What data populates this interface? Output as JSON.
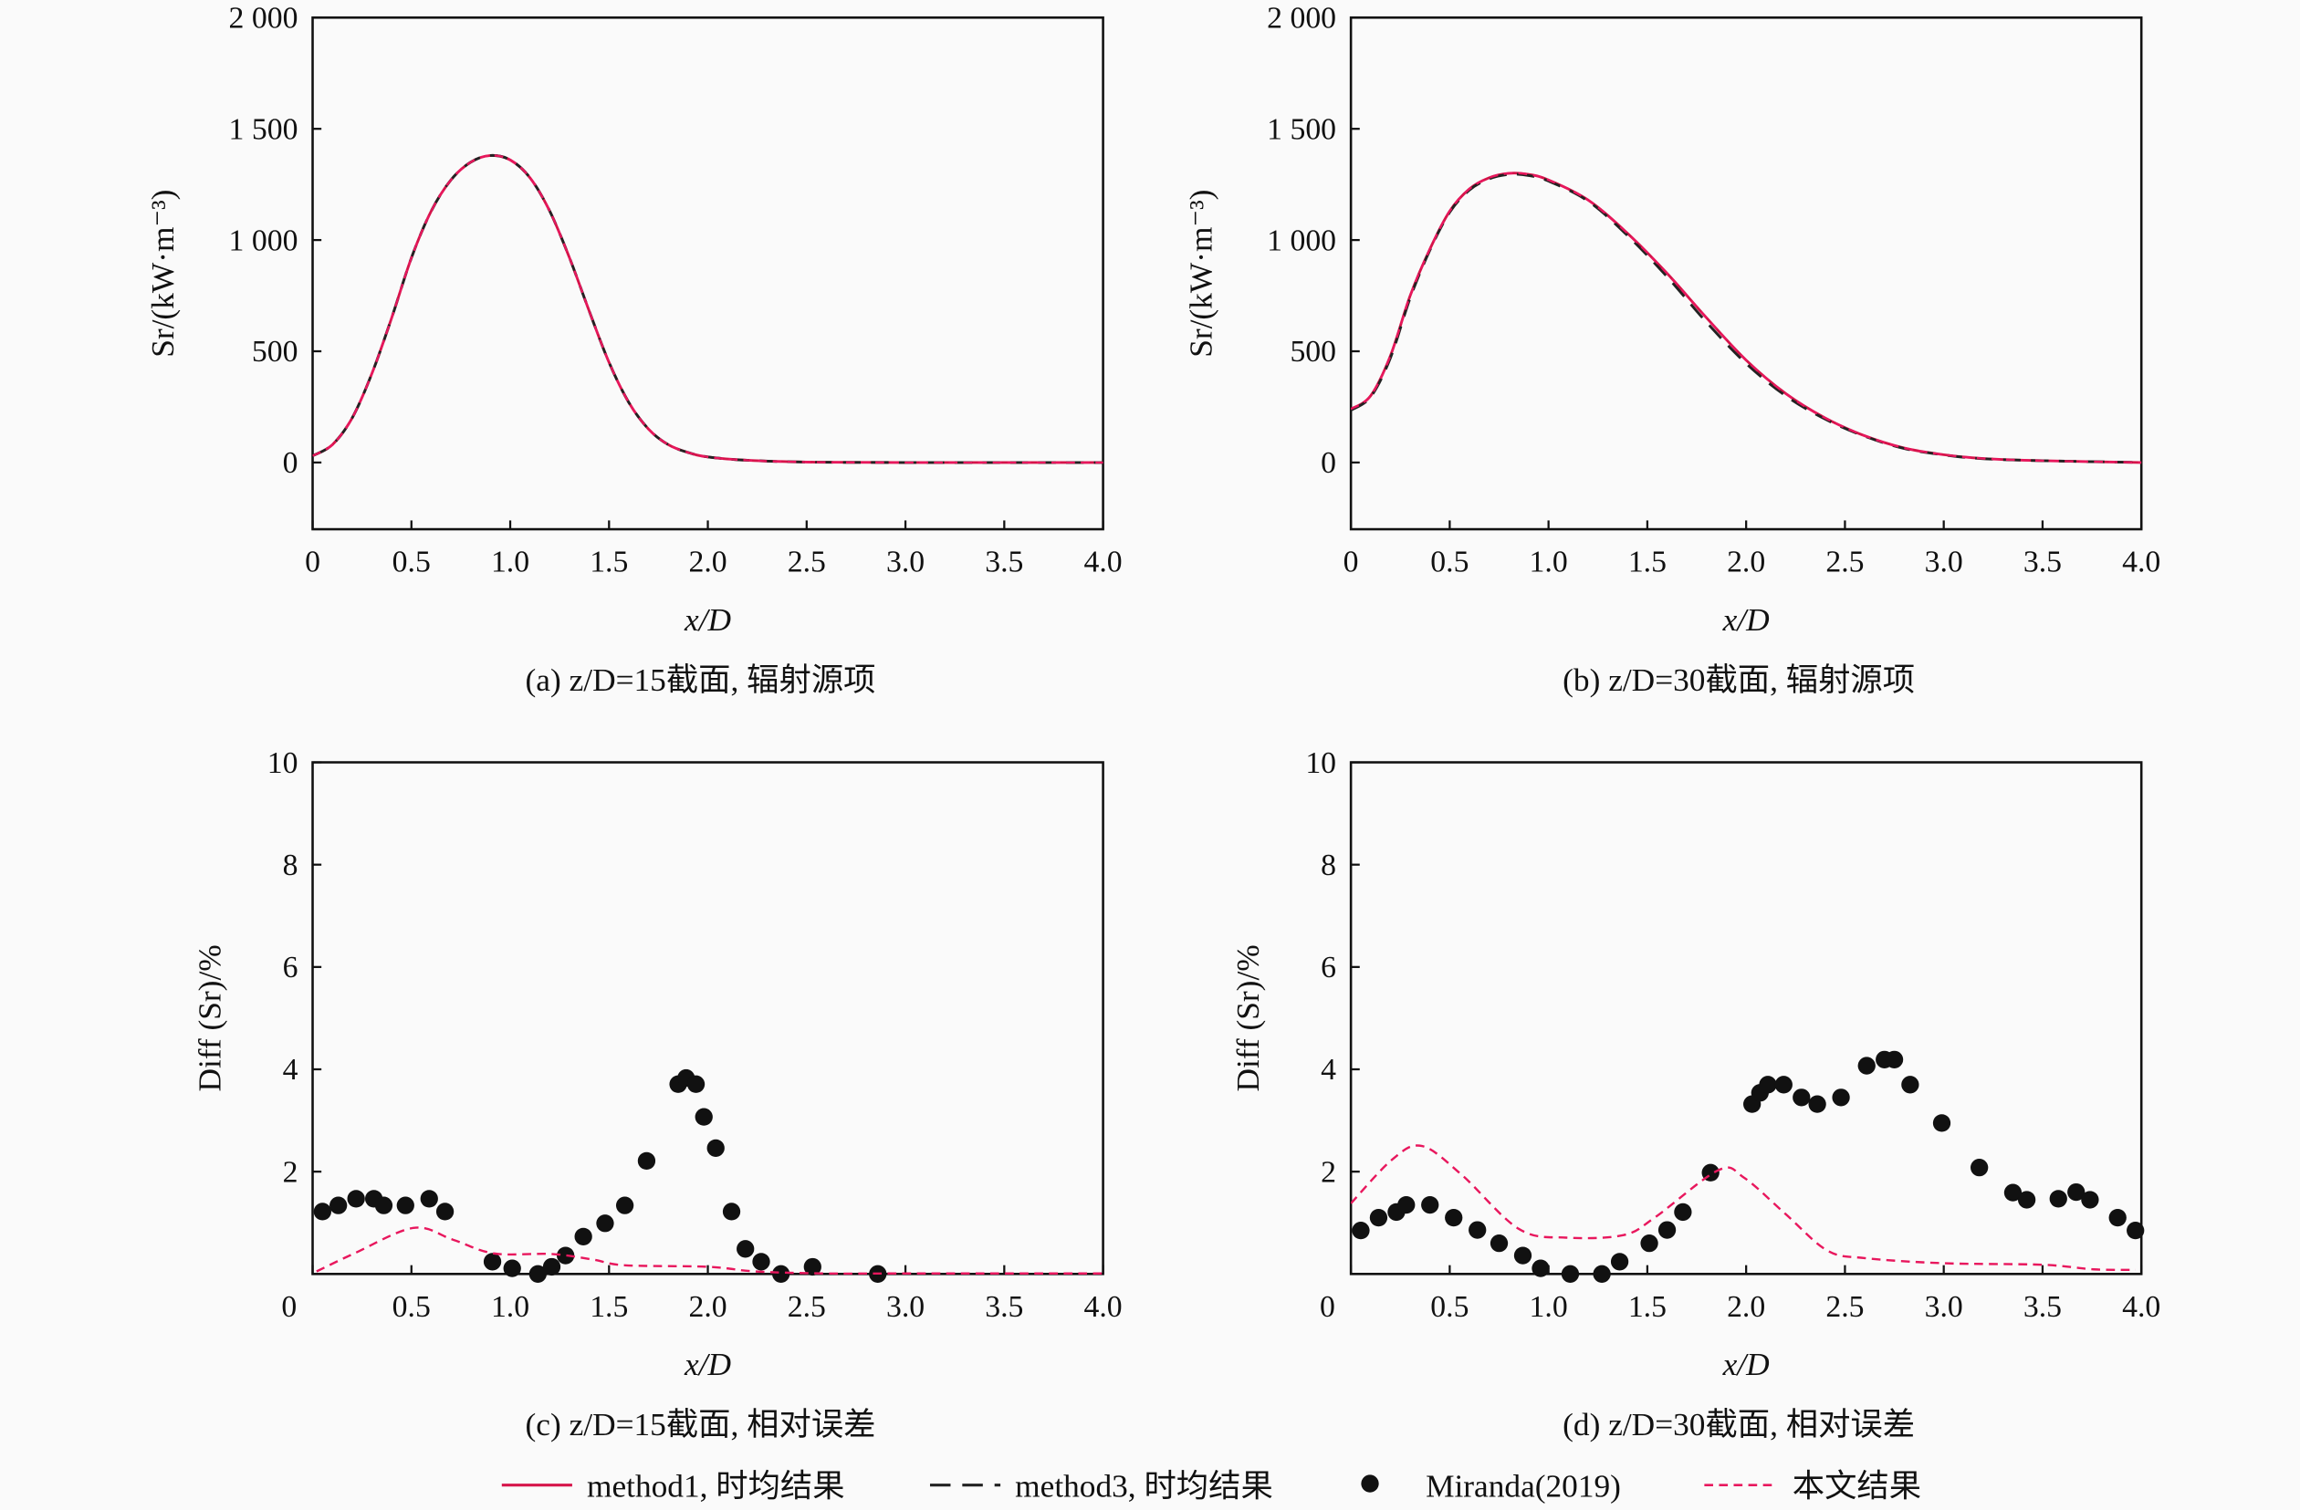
{
  "colors": {
    "method1": "#d6144a",
    "method3": "#222222",
    "miranda": "#111111",
    "present": "#e8175d"
  },
  "legend": {
    "method1": "method1, 时均结果",
    "method3": "method3, 时均结果",
    "miranda": "Miranda(2019)",
    "present": "本文结果"
  },
  "chart_data": [
    {
      "id": "a",
      "type": "line",
      "caption": "(a) z/D=15截面, 辐射源项",
      "xlabel": "x/D",
      "ylabel": "Sr/(kW·m⁻³)",
      "xlim": [
        0,
        4.0
      ],
      "ylim": [
        -300,
        2000
      ],
      "xticks": [
        "0",
        "0.5",
        "1.0",
        "1.5",
        "2.0",
        "2.5",
        "3.0",
        "3.5",
        "4.0"
      ],
      "yticks": [
        {
          "v": 0,
          "label": "0"
        },
        {
          "v": 500,
          "label": "500"
        },
        {
          "v": 1000,
          "label": "1 000"
        },
        {
          "v": 1500,
          "label": "1 500"
        },
        {
          "v": 2000,
          "label": "2 000"
        }
      ],
      "series": [
        {
          "name": "method1, 时均结果",
          "style": "method1",
          "x": [
            0,
            0.1,
            0.2,
            0.3,
            0.4,
            0.5,
            0.6,
            0.7,
            0.8,
            0.9,
            1.0,
            1.1,
            1.2,
            1.3,
            1.4,
            1.5,
            1.6,
            1.7,
            1.8,
            1.9,
            2.0,
            2.2,
            2.5,
            3.0,
            4.0
          ],
          "y": [
            30,
            80,
            200,
            400,
            650,
            920,
            1130,
            1270,
            1350,
            1380,
            1360,
            1280,
            1130,
            920,
            680,
            450,
            270,
            150,
            80,
            45,
            25,
            10,
            2,
            0,
            0
          ]
        },
        {
          "name": "method3, 时均结果",
          "style": "method3",
          "x": [
            0,
            0.1,
            0.2,
            0.3,
            0.4,
            0.5,
            0.6,
            0.7,
            0.8,
            0.9,
            1.0,
            1.1,
            1.2,
            1.3,
            1.4,
            1.5,
            1.6,
            1.7,
            1.8,
            1.9,
            2.0,
            2.2,
            2.5,
            3.0,
            4.0
          ],
          "y": [
            30,
            80,
            200,
            400,
            650,
            920,
            1130,
            1270,
            1350,
            1380,
            1360,
            1280,
            1130,
            920,
            680,
            450,
            270,
            150,
            80,
            45,
            25,
            10,
            2,
            0,
            0
          ]
        },
        {
          "name": "本文结果",
          "style": "present",
          "x": [
            0,
            0.1,
            0.2,
            0.3,
            0.4,
            0.5,
            0.6,
            0.7,
            0.8,
            0.9,
            1.0,
            1.1,
            1.2,
            1.3,
            1.4,
            1.5,
            1.6,
            1.7,
            1.8,
            1.9,
            2.0,
            2.2,
            2.5,
            3.0,
            4.0
          ],
          "y": [
            30,
            80,
            200,
            400,
            650,
            920,
            1130,
            1270,
            1350,
            1380,
            1360,
            1280,
            1130,
            920,
            680,
            450,
            270,
            150,
            80,
            45,
            25,
            10,
            2,
            0,
            0
          ]
        }
      ]
    },
    {
      "id": "b",
      "type": "line",
      "caption": "(b) z/D=30截面, 辐射源项",
      "xlabel": "x/D",
      "ylabel": "Sr/(kW·m⁻³)",
      "xlim": [
        0,
        4.0
      ],
      "ylim": [
        -300,
        2000
      ],
      "xticks": [
        "0",
        "0.5",
        "1.0",
        "1.5",
        "2.0",
        "2.5",
        "3.0",
        "3.5",
        "4.0"
      ],
      "yticks": [
        {
          "v": 0,
          "label": "0"
        },
        {
          "v": 500,
          "label": "500"
        },
        {
          "v": 1000,
          "label": "1 000"
        },
        {
          "v": 1500,
          "label": "1 500"
        },
        {
          "v": 2000,
          "label": "2 000"
        }
      ],
      "series": [
        {
          "name": "method1, 时均结果",
          "style": "method1",
          "x": [
            0,
            0.1,
            0.2,
            0.3,
            0.4,
            0.5,
            0.6,
            0.7,
            0.8,
            0.9,
            1.0,
            1.2,
            1.4,
            1.6,
            1.8,
            2.0,
            2.2,
            2.4,
            2.6,
            2.8,
            3.0,
            3.2,
            3.5,
            4.0
          ],
          "y": [
            240,
            300,
            480,
            750,
            960,
            1130,
            1230,
            1280,
            1300,
            1295,
            1270,
            1180,
            1030,
            850,
            650,
            460,
            310,
            200,
            120,
            65,
            35,
            18,
            8,
            0
          ]
        },
        {
          "name": "method3, 时均结果",
          "style": "method3",
          "x": [
            0,
            0.1,
            0.2,
            0.3,
            0.4,
            0.5,
            0.6,
            0.7,
            0.8,
            0.9,
            1.0,
            1.2,
            1.4,
            1.6,
            1.8,
            2.0,
            2.2,
            2.4,
            2.6,
            2.8,
            3.0,
            3.2,
            3.5,
            4.0
          ],
          "y": [
            235,
            295,
            470,
            740,
            955,
            1125,
            1225,
            1275,
            1295,
            1290,
            1265,
            1175,
            1020,
            835,
            630,
            445,
            300,
            195,
            118,
            63,
            34,
            17,
            8,
            0
          ]
        },
        {
          "name": "本文结果",
          "style": "present",
          "x": [
            0,
            0.1,
            0.2,
            0.3,
            0.4,
            0.5,
            0.6,
            0.7,
            0.8,
            0.9,
            1.0,
            1.2,
            1.4,
            1.6,
            1.8,
            2.0,
            2.2,
            2.4,
            2.6,
            2.8,
            3.0,
            3.2,
            3.5,
            4.0
          ],
          "y": [
            240,
            300,
            480,
            750,
            960,
            1130,
            1230,
            1280,
            1300,
            1295,
            1270,
            1180,
            1030,
            850,
            650,
            460,
            310,
            200,
            120,
            65,
            35,
            18,
            8,
            0
          ]
        }
      ]
    },
    {
      "id": "c",
      "type": "line",
      "caption": "(c) z/D=15截面, 相对误差",
      "xlabel": "x/D",
      "ylabel": "Diff (Sr)/%",
      "xlim": [
        0,
        4.0
      ],
      "ylim": [
        0,
        10
      ],
      "xticks": [
        "0",
        "0.5",
        "1.0",
        "1.5",
        "2.0",
        "2.5",
        "3.0",
        "3.5",
        "4.0"
      ],
      "yticks": [
        {
          "v": 2,
          "label": "2"
        },
        {
          "v": 4,
          "label": "4"
        },
        {
          "v": 6,
          "label": "6"
        },
        {
          "v": 8,
          "label": "8"
        },
        {
          "v": 10,
          "label": "10"
        }
      ],
      "series": [
        {
          "name": "Miranda(2019)",
          "style": "miranda",
          "x": [
            0.05,
            0.13,
            0.22,
            0.31,
            0.36,
            0.47,
            0.59,
            0.67,
            0.91,
            1.01,
            1.14,
            1.21,
            1.28,
            1.37,
            1.48,
            1.58,
            1.69,
            1.85,
            1.89,
            1.94,
            1.98,
            2.04,
            2.12,
            2.19,
            2.27,
            2.37,
            2.53,
            2.86
          ],
          "y": [
            1.22,
            1.34,
            1.47,
            1.47,
            1.34,
            1.34,
            1.47,
            1.22,
            0.24,
            0.11,
            0.0,
            0.14,
            0.36,
            0.73,
            0.99,
            1.34,
            2.21,
            3.71,
            3.83,
            3.71,
            3.07,
            2.46,
            1.22,
            0.49,
            0.24,
            0.0,
            0.14,
            0.0
          ]
        },
        {
          "name": "本文结果",
          "style": "present",
          "x": [
            0.02,
            0.21,
            0.51,
            0.71,
            0.92,
            1.21,
            1.42,
            1.58,
            2.0,
            2.24,
            2.59,
            3.0,
            4.0
          ],
          "y": [
            0.05,
            0.4,
            0.9,
            0.67,
            0.4,
            0.39,
            0.28,
            0.17,
            0.14,
            0.05,
            0.01,
            0.01,
            0.01
          ]
        }
      ]
    },
    {
      "id": "d",
      "type": "line",
      "caption": "(d) z/D=30截面, 相对误差",
      "xlabel": "x/D",
      "ylabel": "Diff (Sr)/%",
      "xlim": [
        0,
        4.0
      ],
      "ylim": [
        0,
        10
      ],
      "xticks": [
        "0",
        "0.5",
        "1.0",
        "1.5",
        "2.0",
        "2.5",
        "3.0",
        "3.5",
        "4.0"
      ],
      "yticks": [
        {
          "v": 2,
          "label": "2"
        },
        {
          "v": 4,
          "label": "4"
        },
        {
          "v": 6,
          "label": "6"
        },
        {
          "v": 8,
          "label": "8"
        },
        {
          "v": 10,
          "label": "10"
        }
      ],
      "series": [
        {
          "name": "Miranda(2019)",
          "style": "miranda",
          "x": [
            0.05,
            0.14,
            0.23,
            0.28,
            0.4,
            0.52,
            0.64,
            0.75,
            0.87,
            0.96,
            1.11,
            1.27,
            1.36,
            1.51,
            1.6,
            1.68,
            1.82,
            2.03,
            2.07,
            2.11,
            2.19,
            2.28,
            2.36,
            2.48,
            2.61,
            2.7,
            2.75,
            2.83,
            2.99,
            3.18,
            3.35,
            3.42,
            3.58,
            3.67,
            3.74,
            3.88,
            3.97
          ],
          "y": [
            0.85,
            1.1,
            1.21,
            1.35,
            1.35,
            1.1,
            0.86,
            0.6,
            0.36,
            0.11,
            0.0,
            0.0,
            0.24,
            0.6,
            0.86,
            1.21,
            1.98,
            3.32,
            3.54,
            3.7,
            3.7,
            3.45,
            3.32,
            3.45,
            4.07,
            4.19,
            4.19,
            3.7,
            2.95,
            2.08,
            1.59,
            1.45,
            1.47,
            1.6,
            1.45,
            1.1,
            0.85
          ]
        },
        {
          "name": "本文结果",
          "style": "present",
          "x": [
            0,
            0.21,
            0.36,
            0.56,
            0.85,
            1.09,
            1.38,
            1.54,
            1.86,
            1.99,
            2.2,
            2.41,
            2.6,
            3.0,
            3.5,
            3.76,
            3.97
          ],
          "y": [
            1.38,
            2.24,
            2.5,
            1.94,
            0.88,
            0.71,
            0.76,
            1.11,
            2.03,
            1.88,
            1.17,
            0.46,
            0.31,
            0.21,
            0.18,
            0.09,
            0.08
          ]
        }
      ]
    }
  ]
}
